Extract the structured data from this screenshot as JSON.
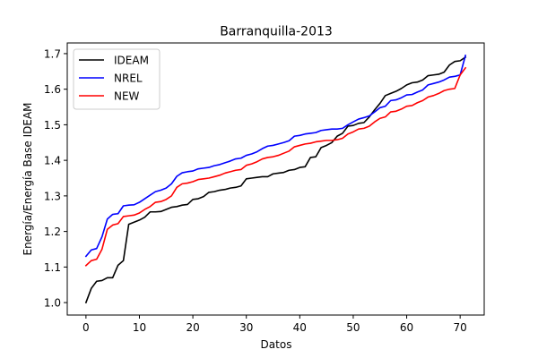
{
  "chart_data": {
    "type": "line",
    "title": "Barranquilla-2013",
    "xlabel": "Datos",
    "ylabel": "Energía/Energía Base IDEAM",
    "xlim": [
      -3.5,
      74.5
    ],
    "ylim": [
      0.965,
      1.73
    ],
    "x_ticks": [
      0,
      10,
      20,
      30,
      40,
      50,
      60,
      70
    ],
    "y_ticks": [
      1.0,
      1.1,
      1.2,
      1.3,
      1.4,
      1.5,
      1.6,
      1.7
    ],
    "y_tick_labels": [
      "1.0",
      "1.1",
      "1.2",
      "1.3",
      "1.4",
      "1.5",
      "1.6",
      "1.7"
    ],
    "grid": false,
    "legend_position": "upper-left",
    "x": [
      0,
      1,
      2,
      3,
      4,
      5,
      6,
      7,
      8,
      9,
      10,
      11,
      12,
      13,
      14,
      15,
      16,
      17,
      18,
      19,
      20,
      21,
      22,
      23,
      24,
      25,
      26,
      27,
      28,
      29,
      30,
      31,
      32,
      33,
      34,
      35,
      36,
      37,
      38,
      39,
      40,
      41,
      42,
      43,
      44,
      45,
      46,
      47,
      48,
      49,
      50,
      51,
      52,
      53,
      54,
      55,
      56,
      57,
      58,
      59,
      60,
      61,
      62,
      63,
      64,
      65,
      66,
      67,
      68,
      69,
      70,
      71
    ],
    "series": [
      {
        "name": "IDEAM",
        "color": "#000000",
        "values": [
          1.0,
          1.04,
          1.06,
          1.062,
          1.07,
          1.07,
          1.105,
          1.118,
          1.22,
          1.226,
          1.232,
          1.24,
          1.255,
          1.255,
          1.256,
          1.262,
          1.268,
          1.27,
          1.274,
          1.276,
          1.29,
          1.292,
          1.298,
          1.31,
          1.312,
          1.316,
          1.318,
          1.322,
          1.324,
          1.328,
          1.348,
          1.35,
          1.352,
          1.354,
          1.354,
          1.362,
          1.364,
          1.366,
          1.372,
          1.374,
          1.38,
          1.382,
          1.408,
          1.41,
          1.436,
          1.442,
          1.45,
          1.468,
          1.476,
          1.496,
          1.498,
          1.504,
          1.506,
          1.522,
          1.542,
          1.56,
          1.582,
          1.588,
          1.594,
          1.602,
          1.612,
          1.618,
          1.62,
          1.626,
          1.638,
          1.64,
          1.642,
          1.648,
          1.668,
          1.678,
          1.68,
          1.69
        ]
      },
      {
        "name": "NREL",
        "color": "#0000ff",
        "values": [
          1.13,
          1.148,
          1.152,
          1.185,
          1.235,
          1.248,
          1.25,
          1.272,
          1.274,
          1.275,
          1.282,
          1.292,
          1.302,
          1.312,
          1.316,
          1.322,
          1.334,
          1.355,
          1.365,
          1.368,
          1.37,
          1.376,
          1.378,
          1.38,
          1.385,
          1.388,
          1.393,
          1.398,
          1.404,
          1.406,
          1.414,
          1.418,
          1.424,
          1.433,
          1.44,
          1.442,
          1.446,
          1.45,
          1.455,
          1.468,
          1.47,
          1.474,
          1.476,
          1.478,
          1.484,
          1.486,
          1.488,
          1.488,
          1.49,
          1.5,
          1.508,
          1.516,
          1.52,
          1.525,
          1.536,
          1.548,
          1.552,
          1.568,
          1.57,
          1.576,
          1.584,
          1.585,
          1.592,
          1.598,
          1.612,
          1.616,
          1.62,
          1.626,
          1.634,
          1.636,
          1.64,
          1.695
        ]
      },
      {
        "name": "NEW",
        "color": "#ff0000",
        "values": [
          1.104,
          1.118,
          1.122,
          1.15,
          1.206,
          1.218,
          1.222,
          1.242,
          1.244,
          1.246,
          1.252,
          1.262,
          1.27,
          1.282,
          1.284,
          1.29,
          1.3,
          1.324,
          1.334,
          1.336,
          1.34,
          1.346,
          1.348,
          1.35,
          1.354,
          1.358,
          1.364,
          1.368,
          1.372,
          1.374,
          1.386,
          1.39,
          1.396,
          1.404,
          1.408,
          1.41,
          1.414,
          1.42,
          1.426,
          1.438,
          1.442,
          1.446,
          1.448,
          1.452,
          1.454,
          1.456,
          1.456,
          1.458,
          1.462,
          1.474,
          1.48,
          1.488,
          1.49,
          1.496,
          1.508,
          1.518,
          1.522,
          1.536,
          1.538,
          1.544,
          1.552,
          1.554,
          1.562,
          1.568,
          1.578,
          1.582,
          1.588,
          1.596,
          1.6,
          1.602,
          1.64,
          1.66
        ]
      }
    ]
  }
}
